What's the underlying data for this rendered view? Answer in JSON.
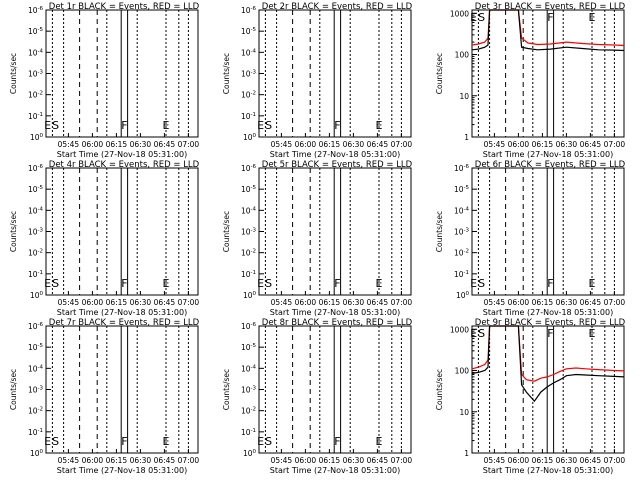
{
  "figure": {
    "x_axis_label": "Start Time (27-Nov-18 05:31:00)",
    "x_ticks": [
      "05:45",
      "06:00",
      "06:15",
      "06:30",
      "06:45",
      "07:00"
    ],
    "y_axis_label": "Counts/sec",
    "colors": {
      "events": "#000000",
      "lld": "#ff0000"
    }
  },
  "chart_data": [
    {
      "type": "line",
      "title": "Det 1r BLACK = Events, RED = LLD",
      "xlabel": "Start Time (27-Nov-18 05:31:00)",
      "ylabel": "Counts/sec",
      "scale": "log",
      "x_ticks": [
        "05:45",
        "06:00",
        "06:15",
        "06:30",
        "06:45",
        "07:00"
      ],
      "y_ticks": [
        "10^0",
        "10^-1",
        "10^-2",
        "10^-3",
        "10^-4",
        "10^-5",
        "10^-6"
      ],
      "markers": [
        "E",
        "S",
        "F",
        "E"
      ],
      "series": []
    },
    {
      "type": "line",
      "title": "Det 2r BLACK = Events, RED = LLD",
      "xlabel": "Start Time (27-Nov-18 05:31:00)",
      "ylabel": "Counts/sec",
      "scale": "log",
      "x_ticks": [
        "05:45",
        "06:00",
        "06:15",
        "06:30",
        "06:45",
        "07:00"
      ],
      "y_ticks": [
        "10^0",
        "10^-1",
        "10^-2",
        "10^-3",
        "10^-4",
        "10^-5",
        "10^-6"
      ],
      "markers": [
        "E",
        "S",
        "F",
        "E"
      ],
      "series": []
    },
    {
      "type": "line",
      "title": "Det 3r BLACK = Events, RED = LLD",
      "xlabel": "Start Time (27-Nov-18 05:31:00)",
      "ylabel": "Counts/sec",
      "scale": "log",
      "x_ticks": [
        "05:45",
        "06:00",
        "06:15",
        "06:30",
        "06:45",
        "07:00"
      ],
      "y_ticks": [
        "1",
        "10",
        "100",
        "1000"
      ],
      "markers": [
        "E",
        "S",
        "F",
        "E"
      ],
      "series": [
        {
          "color": "red",
          "x": [
            "05:31",
            "05:35",
            "05:39",
            "05:41",
            "05:42",
            "06:00",
            "06:02",
            "06:06",
            "06:12",
            "06:20",
            "06:30",
            "06:40",
            "06:50",
            "07:00",
            "07:06"
          ],
          "values": [
            170,
            180,
            200,
            250,
            1200,
            1200,
            250,
            190,
            175,
            180,
            200,
            185,
            175,
            170,
            165
          ]
        },
        {
          "color": "black",
          "x": [
            "05:31",
            "05:35",
            "05:39",
            "05:41",
            "05:42",
            "06:00",
            "06:02",
            "06:06",
            "06:12",
            "06:20",
            "06:30",
            "06:40",
            "06:50",
            "07:00",
            "07:06"
          ],
          "values": [
            130,
            135,
            150,
            170,
            1200,
            1200,
            150,
            140,
            130,
            135,
            150,
            140,
            130,
            128,
            125
          ]
        }
      ]
    },
    {
      "type": "line",
      "title": "Det 4r BLACK = Events, RED = LLD",
      "xlabel": "Start Time (27-Nov-18 05:31:00)",
      "ylabel": "Counts/sec",
      "scale": "log",
      "x_ticks": [
        "05:45",
        "06:00",
        "06:15",
        "06:30",
        "06:45",
        "07:00"
      ],
      "y_ticks": [
        "10^0",
        "10^-1",
        "10^-2",
        "10^-3",
        "10^-4",
        "10^-5",
        "10^-6"
      ],
      "markers": [
        "E",
        "S",
        "F",
        "E"
      ],
      "series": []
    },
    {
      "type": "line",
      "title": "Det 5r BLACK = Events, RED = LLD",
      "xlabel": "Start Time (27-Nov-18 05:31:00)",
      "ylabel": "Counts/sec",
      "scale": "log",
      "x_ticks": [
        "05:45",
        "06:00",
        "06:15",
        "06:30",
        "06:45",
        "07:00"
      ],
      "y_ticks": [
        "10^0",
        "10^-1",
        "10^-2",
        "10^-3",
        "10^-4",
        "10^-5",
        "10^-6"
      ],
      "markers": [
        "E",
        "S",
        "F",
        "E"
      ],
      "series": []
    },
    {
      "type": "line",
      "title": "Det 6r BLACK = Events, RED = LLD",
      "xlabel": "Start Time (27-Nov-18 05:31:00)",
      "ylabel": "Counts/sec",
      "scale": "log",
      "x_ticks": [
        "05:45",
        "06:00",
        "06:15",
        "06:30",
        "06:45",
        "07:00"
      ],
      "y_ticks": [
        "10^0",
        "10^-1",
        "10^-2",
        "10^-3",
        "10^-4",
        "10^-5",
        "10^-6"
      ],
      "markers": [
        "E",
        "S",
        "F",
        "E"
      ],
      "series": []
    },
    {
      "type": "line",
      "title": "Det 7r BLACK = Events, RED = LLD",
      "xlabel": "Start Time (27-Nov-18 05:31:00)",
      "ylabel": "Counts/sec",
      "scale": "log",
      "x_ticks": [
        "05:45",
        "06:00",
        "06:15",
        "06:30",
        "06:45",
        "07:00"
      ],
      "y_ticks": [
        "10^0",
        "10^-1",
        "10^-2",
        "10^-3",
        "10^-4",
        "10^-5",
        "10^-6"
      ],
      "markers": [
        "E",
        "S",
        "F",
        "E"
      ],
      "series": []
    },
    {
      "type": "line",
      "title": "Det 8r BLACK = Events, RED = LLD",
      "xlabel": "Start Time (27-Nov-18 05:31:00)",
      "ylabel": "Counts/sec",
      "scale": "log",
      "x_ticks": [
        "05:45",
        "06:00",
        "06:15",
        "06:30",
        "06:45",
        "07:00"
      ],
      "y_ticks": [
        "10^0",
        "10^-1",
        "10^-2",
        "10^-3",
        "10^-4",
        "10^-5",
        "10^-6"
      ],
      "markers": [
        "E",
        "S",
        "F",
        "E"
      ],
      "series": []
    },
    {
      "type": "line",
      "title": "Det 9r BLACK = Events, RED = LLD",
      "xlabel": "Start Time (27-Nov-18 05:31:00)",
      "ylabel": "Counts/sec",
      "scale": "log",
      "x_ticks": [
        "05:45",
        "06:00",
        "06:15",
        "06:30",
        "06:45",
        "07:00"
      ],
      "y_ticks": [
        "1",
        "10",
        "100",
        "1000"
      ],
      "markers": [
        "E",
        "S",
        "F",
        "E"
      ],
      "series": [
        {
          "color": "red",
          "x": [
            "05:31",
            "05:35",
            "05:39",
            "05:41",
            "05:42",
            "06:00",
            "06:02",
            "06:05",
            "06:10",
            "06:14",
            "06:18",
            "06:22",
            "06:26",
            "06:30",
            "06:36",
            "06:42",
            "06:50",
            "07:00",
            "07:06"
          ],
          "values": [
            110,
            120,
            140,
            180,
            1200,
            1200,
            80,
            60,
            55,
            65,
            70,
            80,
            95,
            110,
            115,
            110,
            105,
            100,
            98
          ]
        },
        {
          "color": "black",
          "x": [
            "05:31",
            "05:35",
            "05:39",
            "05:41",
            "05:42",
            "06:00",
            "06:02",
            "06:05",
            "06:10",
            "06:14",
            "06:18",
            "06:22",
            "06:26",
            "06:30",
            "06:36",
            "06:42",
            "06:50",
            "07:00",
            "07:06"
          ],
          "values": [
            85,
            90,
            100,
            120,
            1200,
            1200,
            45,
            30,
            18,
            30,
            40,
            50,
            60,
            75,
            80,
            78,
            75,
            72,
            70
          ]
        }
      ]
    }
  ]
}
